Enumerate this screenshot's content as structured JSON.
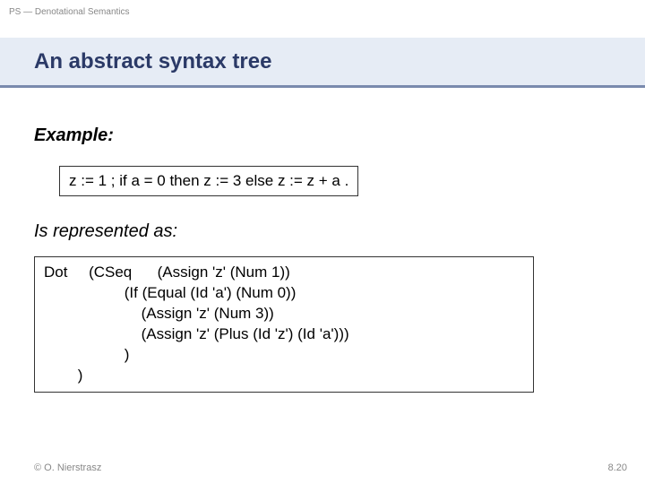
{
  "header": {
    "course_label": "PS — Denotational Semantics"
  },
  "title": "An abstract syntax tree",
  "example": {
    "label": "Example:",
    "code": "z := 1 ; if a = 0 then z := 3 else z := z + a ."
  },
  "represented": {
    "label": "Is represented as:",
    "code": "Dot     (CSeq      (Assign 'z' (Num 1))\n                   (If (Equal (Id 'a') (Num 0))\n                       (Assign 'z' (Num 3))\n                       (Assign 'z' (Plus (Id 'z') (Id 'a')))\n                   )\n        )"
  },
  "footer": {
    "copyright": "© O. Nierstrasz",
    "page_number": "8.20"
  },
  "colors": {
    "title_band_bg": "#e6ecf5",
    "title_band_border": "#7a8aad",
    "title_text": "#2b3a67",
    "muted_text": "#888888",
    "body_text": "#000000",
    "box_border": "#333333",
    "background": "#ffffff"
  },
  "typography": {
    "header_label_size": 10,
    "title_size": 24,
    "section_label_size": 20,
    "code_size": 17,
    "footer_size": 11
  }
}
